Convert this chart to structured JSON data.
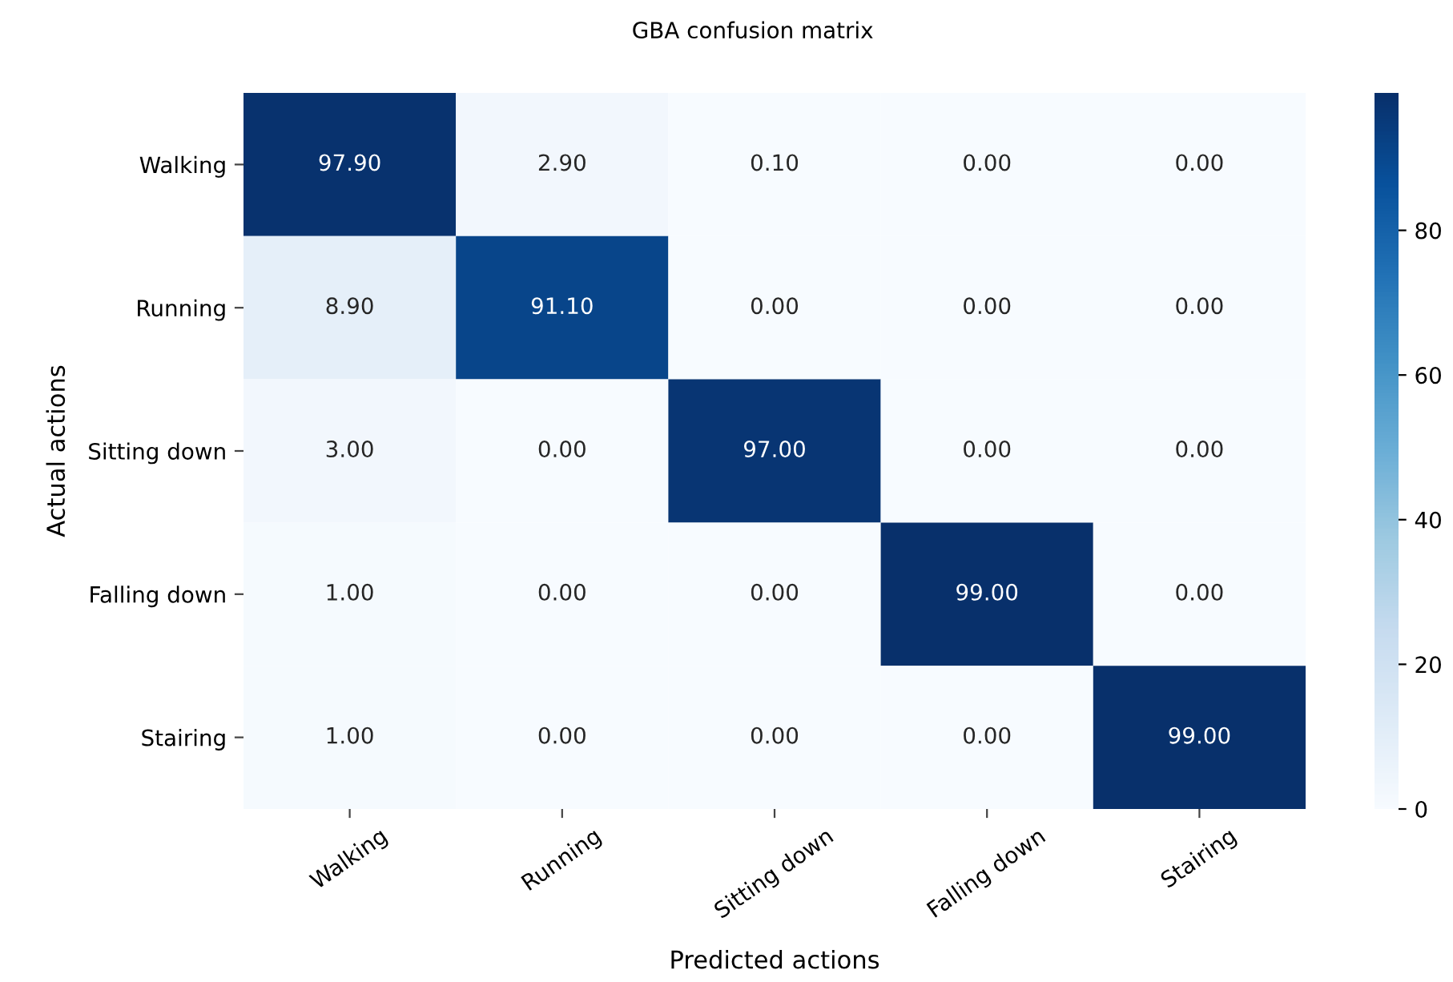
{
  "chart_data": {
    "type": "heatmap",
    "title": "GBA confusion matrix",
    "xlabel": "Predicted actions",
    "ylabel": "Actual actions",
    "categories": [
      "Walking",
      "Running",
      "Sitting down",
      "Falling down",
      "Stairing"
    ],
    "y_categories": [
      "Walking",
      "Running",
      "Sitting down",
      "Falling down",
      "Stairing"
    ],
    "cells": [
      [
        97.9,
        2.9,
        0.1,
        0.0,
        0.0
      ],
      [
        8.9,
        91.1,
        0.0,
        0.0,
        0.0
      ],
      [
        3.0,
        0.0,
        97.0,
        0.0,
        0.0
      ],
      [
        1.0,
        0.0,
        0.0,
        99.0,
        0.0
      ],
      [
        1.0,
        0.0,
        0.0,
        0.0,
        99.0
      ]
    ],
    "cell_labels": [
      [
        "97.90",
        "2.90",
        "0.10",
        "0.00",
        "0.00"
      ],
      [
        "8.90",
        "91.10",
        "0.00",
        "0.00",
        "0.00"
      ],
      [
        "3.00",
        "0.00",
        "97.00",
        "0.00",
        "0.00"
      ],
      [
        "1.00",
        "0.00",
        "0.00",
        "99.00",
        "0.00"
      ],
      [
        "1.00",
        "0.00",
        "0.00",
        "0.00",
        "99.00"
      ]
    ],
    "clim": [
      0,
      99
    ],
    "cticks": [
      0,
      20,
      40,
      60,
      80
    ]
  }
}
